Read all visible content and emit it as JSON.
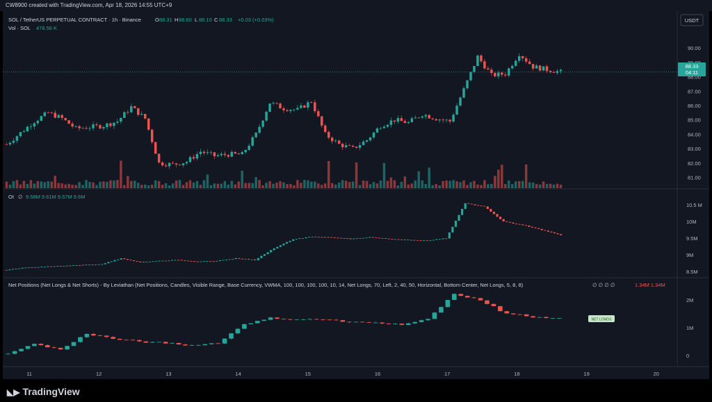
{
  "header": {
    "created_by": "CW8900 created with TradingView.com, Apr 18, 2026 14:55 UTC+9"
  },
  "legend": {
    "symbol": "SOL / TetherUS PERPETUAL CONTRACT · 1h · Binance",
    "o_label": "O",
    "o_value": "88.31",
    "h_label": "H",
    "h_value": "88.60",
    "l_label": "L",
    "l_value": "88.10",
    "c_label": "C",
    "c_value": "88.33",
    "change": "+0.03 (+0.03%)",
    "vol_label": "Vol · SOL",
    "vol_value": "478.56 K",
    "oi_label": "OI",
    "oi_values": "9.58M  9.61M  9.57M  9.6M",
    "net_label": "Net Positions (Net Longs & Net Shorts) - By Leviathan (Net Positions, Candles, Visible Range, Base Currency, VWMA, 100, 100, 100, 100, 10, 14, Net Longs, 70, Left, 2, 40, 50, Horizontal, Bottom Center, Net Longs, 5, 8, 8)",
    "net_symbols": "∅ ∅ ∅ ∅",
    "net_values": "1.34M  1.34M"
  },
  "price_axis": {
    "currency": "USDT",
    "labels": [
      "90.00",
      "89.00",
      "88.00",
      "87.00",
      "86.00",
      "85.00",
      "84.00",
      "83.00",
      "82.00",
      "81.00"
    ],
    "last_price": "88.33",
    "countdown": "04:11"
  },
  "oi_axis": {
    "labels": [
      "10.5 M",
      "10M",
      "9.5M",
      "9M",
      "8.5M"
    ]
  },
  "net_axis": {
    "labels": [
      "2M",
      "1M",
      "0"
    ]
  },
  "net_tag": "NET LONGS",
  "time_axis": {
    "labels": [
      "11",
      "12",
      "13",
      "14",
      "15",
      "16",
      "17",
      "18",
      "19",
      "20"
    ]
  },
  "footer": {
    "brand": "TradingView"
  },
  "colors": {
    "up": "#26a69a",
    "down": "#ef5350",
    "bg": "#131722",
    "text": "#b2b5be"
  },
  "chart_data": [
    {
      "type": "candlestick",
      "title": "SOL / TetherUS PERPETUAL CONTRACT · 1h · Binance",
      "ylim": [
        80.4,
        91.6
      ],
      "x_ticks": [
        "11",
        "12",
        "13",
        "14",
        "15",
        "16",
        "17",
        "18",
        "19",
        "20"
      ],
      "close_path": [
        83.3,
        84.1,
        84.9,
        85.5,
        85.1,
        84.4,
        84.5,
        84.6,
        84.9,
        85.9,
        85.1,
        82.0,
        81.9,
        82.1,
        82.8,
        82.5,
        82.6,
        82.6,
        84.0,
        86.2,
        85.8,
        85.7,
        86.3,
        84.0,
        83.3,
        83.0,
        83.6,
        84.6,
        85.0,
        84.8,
        85.4,
        85.1,
        84.9,
        87.1,
        89.4,
        88.1,
        88.2,
        89.6,
        88.7,
        88.5,
        88.33
      ],
      "last_price": 88.33
    },
    {
      "type": "bar",
      "title": "Vol · SOL",
      "last_value": "478.56 K"
    },
    {
      "type": "candlestick",
      "title": "OI",
      "ylim": [
        8.4,
        10.65
      ],
      "values_shown": [
        "9.58M",
        "9.61M",
        "9.57M",
        "9.6M"
      ],
      "close_path": [
        8.55,
        8.62,
        8.65,
        8.67,
        8.7,
        8.72,
        8.9,
        8.78,
        8.82,
        8.85,
        8.8,
        8.82,
        8.9,
        8.85,
        9.2,
        9.47,
        9.55,
        9.53,
        9.48,
        9.53,
        9.48,
        9.45,
        9.43,
        9.5,
        10.55,
        10.45,
        10.0,
        9.9,
        9.75,
        9.6
      ]
    },
    {
      "type": "candlestick",
      "title": "Net Positions (Net Longs & Net Shorts) - By Leviathan",
      "ylim": [
        -0.3,
        2.4
      ],
      "values_shown": [
        "1.34M",
        "1.34M"
      ],
      "close_path": [
        0.05,
        0.4,
        0.2,
        0.8,
        0.6,
        0.5,
        0.45,
        0.35,
        0.45,
        1.1,
        1.35,
        1.3,
        1.3,
        1.2,
        1.2,
        1.1,
        1.3,
        2.2,
        2.0,
        1.5,
        1.4,
        1.34
      ]
    }
  ]
}
